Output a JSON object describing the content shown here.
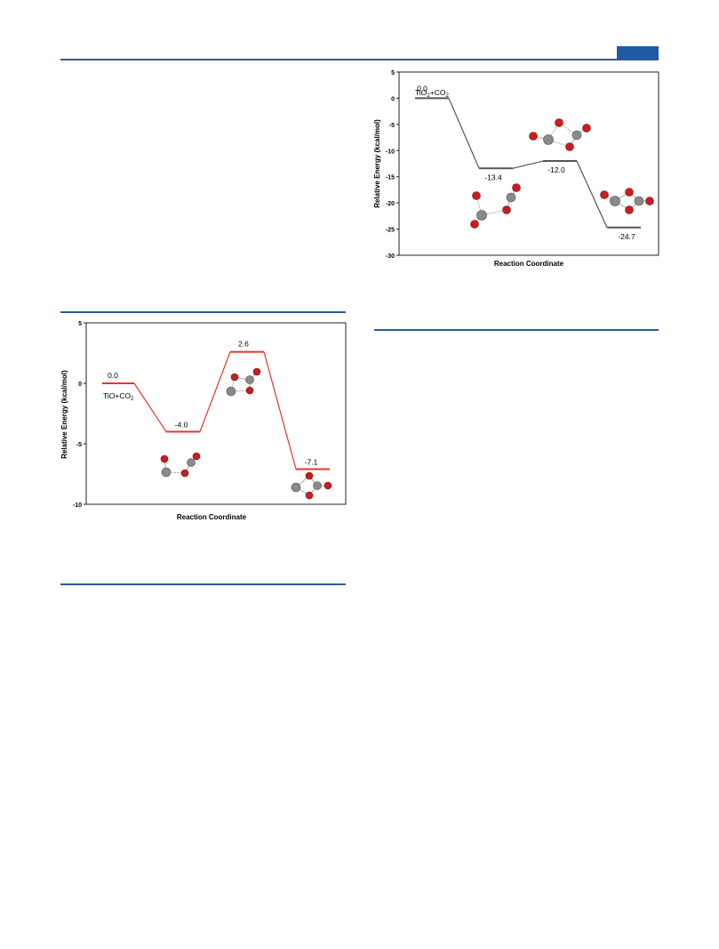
{
  "colors": {
    "accent": "#1f5aa6",
    "rule": "#2b5c9e",
    "chart1_line": "#555555",
    "chart2_line": "#e8352b",
    "oxygen": "#c81e1e",
    "titanium": "#8a8a8a",
    "carbon": "#8a8a8a"
  },
  "chart_data": [
    {
      "type": "line",
      "title": "",
      "xlabel": "Reaction Coordinate",
      "ylabel": "Relative Energy (kcal/mol)",
      "ylim": [
        -30,
        5
      ],
      "yticks": [
        5,
        0,
        -5,
        -10,
        -15,
        -20,
        -25,
        -30
      ],
      "grid": false,
      "series": [
        {
          "values": [
            0.0,
            -13.4,
            -12.0,
            -24.7
          ]
        }
      ],
      "level_labels": [
        "0.0",
        "-13.4",
        "-12.0",
        "-24.7"
      ],
      "annotations": [
        {
          "text": "TiO2+CO2",
          "main": "TiO",
          "sub1": "2",
          "mid": "+CO",
          "sub2": "2"
        }
      ]
    },
    {
      "type": "line",
      "title": "",
      "xlabel": "Reaction Coordinate",
      "ylabel": "Relative Energy (kcal/mol)",
      "ylim": [
        -10,
        5
      ],
      "yticks": [
        5,
        0,
        -5,
        -10
      ],
      "grid": false,
      "series": [
        {
          "values": [
            0.0,
            -4.0,
            2.6,
            -7.1
          ]
        }
      ],
      "level_labels": [
        "0.0",
        "-4.0",
        "2.6",
        "-7.1"
      ],
      "annotations": [
        {
          "text": "TiO+CO2",
          "main": "TiO+CO",
          "sub": "2"
        }
      ]
    }
  ]
}
